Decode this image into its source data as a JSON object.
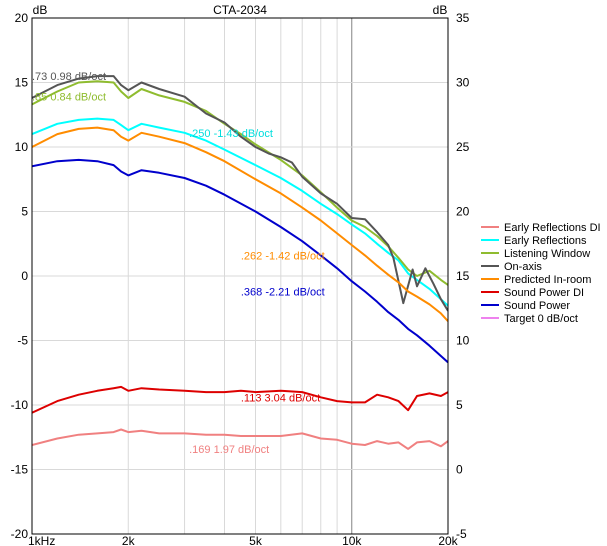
{
  "chart_data": {
    "type": "line",
    "title": "CTA-2034",
    "y_left_unit": "dB",
    "y_right_unit": "dB",
    "x_scale": "log",
    "xlim": [
      1000,
      20000
    ],
    "ylim_left": [
      -20,
      20
    ],
    "ylim_right": [
      -5,
      35
    ],
    "x_ticks": [
      {
        "value": 1000,
        "label": "1kHz"
      },
      {
        "value": 2000,
        "label": "2k"
      },
      {
        "value": 5000,
        "label": "5k"
      },
      {
        "value": 10000,
        "label": "10k"
      },
      {
        "value": 20000,
        "label": "20k"
      }
    ],
    "y_left_ticks": [
      {
        "value": 20,
        "label": "20"
      },
      {
        "value": 15,
        "label": "15"
      },
      {
        "value": 10,
        "label": "10"
      },
      {
        "value": 5,
        "label": "5"
      },
      {
        "value": 0,
        "label": "0"
      },
      {
        "value": -5,
        "label": "-5"
      },
      {
        "value": -10,
        "label": "-10"
      },
      {
        "value": -15,
        "label": "-15"
      },
      {
        "value": -20,
        "label": "-20"
      }
    ],
    "y_right_ticks": [
      {
        "value": 35,
        "label": "35"
      },
      {
        "value": 30,
        "label": "30"
      },
      {
        "value": 25,
        "label": "25"
      },
      {
        "value": 20,
        "label": "20"
      },
      {
        "value": 15,
        "label": "15"
      },
      {
        "value": 10,
        "label": "10"
      },
      {
        "value": 5,
        "label": "5"
      },
      {
        "value": 0,
        "label": "0"
      },
      {
        "value": -5,
        "label": "-5"
      }
    ],
    "grid": true,
    "legend_position": "right",
    "series": [
      {
        "name": "Early Reflections DI",
        "color": "#f08080",
        "axis": "right",
        "points": [
          [
            1000,
            1.9
          ],
          [
            1200,
            2.4
          ],
          [
            1400,
            2.7
          ],
          [
            1600,
            2.8
          ],
          [
            1800,
            2.9
          ],
          [
            1900,
            3.1
          ],
          [
            2000,
            2.9
          ],
          [
            2200,
            3.0
          ],
          [
            2500,
            2.8
          ],
          [
            3000,
            2.8
          ],
          [
            3500,
            2.7
          ],
          [
            4000,
            2.7
          ],
          [
            4500,
            2.6
          ],
          [
            5000,
            2.6
          ],
          [
            6000,
            2.6
          ],
          [
            7000,
            2.8
          ],
          [
            8000,
            2.4
          ],
          [
            9000,
            2.3
          ],
          [
            10000,
            2.0
          ],
          [
            11000,
            1.9
          ],
          [
            12000,
            2.2
          ],
          [
            13000,
            2.0
          ],
          [
            14000,
            2.1
          ],
          [
            15000,
            1.6
          ],
          [
            16000,
            2.1
          ],
          [
            17500,
            2.2
          ],
          [
            19000,
            1.8
          ],
          [
            20000,
            2.2
          ]
        ]
      },
      {
        "name": "Early Reflections",
        "color": "#00ffff",
        "axis": "left",
        "points": [
          [
            1000,
            11.0
          ],
          [
            1200,
            11.8
          ],
          [
            1400,
            12.1
          ],
          [
            1600,
            12.2
          ],
          [
            1800,
            12.1
          ],
          [
            1900,
            11.7
          ],
          [
            2000,
            11.3
          ],
          [
            2200,
            11.8
          ],
          [
            2500,
            11.5
          ],
          [
            3000,
            11.1
          ],
          [
            3500,
            10.5
          ],
          [
            4000,
            9.8
          ],
          [
            5000,
            8.6
          ],
          [
            6000,
            7.6
          ],
          [
            7000,
            6.6
          ],
          [
            8000,
            5.6
          ],
          [
            9000,
            4.8
          ],
          [
            10000,
            4.0
          ],
          [
            11000,
            3.3
          ],
          [
            12000,
            2.5
          ],
          [
            13000,
            1.8
          ],
          [
            14000,
            1.2
          ],
          [
            15000,
            0.2
          ],
          [
            16000,
            -0.3
          ],
          [
            17500,
            -1.0
          ],
          [
            19000,
            -1.8
          ],
          [
            20000,
            -2.3
          ]
        ]
      },
      {
        "name": "Listening Window",
        "color": "#8fbc2f",
        "axis": "left",
        "points": [
          [
            1000,
            13.3
          ],
          [
            1200,
            14.3
          ],
          [
            1400,
            15.0
          ],
          [
            1600,
            15.1
          ],
          [
            1800,
            15.0
          ],
          [
            1900,
            14.3
          ],
          [
            2000,
            13.8
          ],
          [
            2200,
            14.5
          ],
          [
            2500,
            14.0
          ],
          [
            3000,
            13.5
          ],
          [
            3500,
            12.8
          ],
          [
            4000,
            11.8
          ],
          [
            4500,
            11.0
          ],
          [
            5000,
            10.2
          ],
          [
            6000,
            9.0
          ],
          [
            7000,
            7.8
          ],
          [
            8000,
            6.5
          ],
          [
            9000,
            5.3
          ],
          [
            10000,
            4.3
          ],
          [
            11000,
            3.8
          ],
          [
            12000,
            3.1
          ],
          [
            13000,
            2.3
          ],
          [
            14000,
            1.4
          ],
          [
            15000,
            0.5
          ],
          [
            16000,
            0.0
          ],
          [
            17500,
            0.4
          ],
          [
            19000,
            -0.3
          ],
          [
            20000,
            -0.7
          ]
        ]
      },
      {
        "name": "On-axis",
        "color": "#555555",
        "axis": "left",
        "points": [
          [
            1000,
            13.8
          ],
          [
            1200,
            14.8
          ],
          [
            1400,
            15.3
          ],
          [
            1600,
            15.5
          ],
          [
            1800,
            15.5
          ],
          [
            1900,
            14.8
          ],
          [
            2000,
            14.4
          ],
          [
            2200,
            15.0
          ],
          [
            2500,
            14.5
          ],
          [
            3000,
            13.9
          ],
          [
            3500,
            12.6
          ],
          [
            4000,
            11.9
          ],
          [
            4500,
            10.8
          ],
          [
            5000,
            10.0
          ],
          [
            5500,
            9.5
          ],
          [
            6000,
            9.2
          ],
          [
            6500,
            8.8
          ],
          [
            7000,
            7.7
          ],
          [
            8000,
            6.4
          ],
          [
            9000,
            5.6
          ],
          [
            10000,
            4.5
          ],
          [
            11000,
            4.4
          ],
          [
            12000,
            3.4
          ],
          [
            13000,
            2.4
          ],
          [
            13500,
            1.4
          ],
          [
            14500,
            -2.1
          ],
          [
            15500,
            0.5
          ],
          [
            16000,
            -0.8
          ],
          [
            17000,
            0.6
          ],
          [
            18000,
            -0.6
          ],
          [
            19000,
            -1.8
          ],
          [
            20000,
            -2.7
          ]
        ]
      },
      {
        "name": "Predicted In-room",
        "color": "#ff8c00",
        "axis": "left",
        "points": [
          [
            1000,
            10.0
          ],
          [
            1200,
            11.0
          ],
          [
            1400,
            11.4
          ],
          [
            1600,
            11.5
          ],
          [
            1800,
            11.3
          ],
          [
            1900,
            10.8
          ],
          [
            2000,
            10.5
          ],
          [
            2200,
            11.1
          ],
          [
            2500,
            10.8
          ],
          [
            3000,
            10.3
          ],
          [
            3500,
            9.6
          ],
          [
            4000,
            8.9
          ],
          [
            5000,
            7.5
          ],
          [
            6000,
            6.4
          ],
          [
            7000,
            5.3
          ],
          [
            8000,
            4.3
          ],
          [
            9000,
            3.3
          ],
          [
            10000,
            2.4
          ],
          [
            11000,
            1.6
          ],
          [
            12000,
            0.8
          ],
          [
            13000,
            0.1
          ],
          [
            14000,
            -0.5
          ],
          [
            15000,
            -1.2
          ],
          [
            16000,
            -1.6
          ],
          [
            17500,
            -2.2
          ],
          [
            19000,
            -2.9
          ],
          [
            20000,
            -3.5
          ]
        ]
      },
      {
        "name": "Sound Power DI",
        "color": "#dd0000",
        "axis": "right",
        "points": [
          [
            1000,
            4.4
          ],
          [
            1200,
            5.3
          ],
          [
            1400,
            5.8
          ],
          [
            1600,
            6.1
          ],
          [
            1800,
            6.3
          ],
          [
            1900,
            6.4
          ],
          [
            2000,
            6.1
          ],
          [
            2200,
            6.3
          ],
          [
            2500,
            6.2
          ],
          [
            3000,
            6.1
          ],
          [
            3500,
            6.0
          ],
          [
            4000,
            6.0
          ],
          [
            4500,
            6.1
          ],
          [
            5000,
            6.0
          ],
          [
            6000,
            6.1
          ],
          [
            7000,
            6.0
          ],
          [
            8000,
            5.6
          ],
          [
            9000,
            5.3
          ],
          [
            10000,
            5.2
          ],
          [
            11000,
            5.2
          ],
          [
            12000,
            5.8
          ],
          [
            13000,
            5.6
          ],
          [
            14000,
            5.3
          ],
          [
            15000,
            4.6
          ],
          [
            16000,
            5.7
          ],
          [
            17500,
            5.9
          ],
          [
            19000,
            5.7
          ],
          [
            20000,
            6.0
          ]
        ]
      },
      {
        "name": "Sound Power",
        "color": "#0000cc",
        "axis": "left",
        "points": [
          [
            1000,
            8.5
          ],
          [
            1200,
            8.9
          ],
          [
            1400,
            9.0
          ],
          [
            1600,
            8.9
          ],
          [
            1800,
            8.6
          ],
          [
            1900,
            8.1
          ],
          [
            2000,
            7.8
          ],
          [
            2200,
            8.2
          ],
          [
            2500,
            8.0
          ],
          [
            3000,
            7.6
          ],
          [
            3500,
            7.0
          ],
          [
            4000,
            6.3
          ],
          [
            5000,
            5.0
          ],
          [
            6000,
            3.8
          ],
          [
            7000,
            2.7
          ],
          [
            8000,
            1.6
          ],
          [
            9000,
            0.6
          ],
          [
            10000,
            -0.4
          ],
          [
            11000,
            -1.2
          ],
          [
            12000,
            -2.0
          ],
          [
            13000,
            -2.8
          ],
          [
            14000,
            -3.4
          ],
          [
            15000,
            -4.1
          ],
          [
            16000,
            -4.6
          ],
          [
            17500,
            -5.4
          ],
          [
            19000,
            -6.2
          ],
          [
            20000,
            -6.7
          ]
        ]
      },
      {
        "name": "Target 0 dB/oct",
        "color": "#ee82ee",
        "axis": "left",
        "points": []
      }
    ],
    "annotations": [
      {
        "text": ".73  0.98 dB/oct",
        "color": "#555555",
        "x": 1000,
        "y": 15.5
      },
      {
        "text": ".85  0.84 dB/oct",
        "color": "#8fbc2f",
        "x": 1000,
        "y": 13.9
      },
      {
        "text": ".250  -1.43 dB/oct",
        "color": "#00dddd",
        "x": 3100,
        "y": 11.1
      },
      {
        "text": ".262  -1.42 dB/oct",
        "color": "#ff8c00",
        "x": 4500,
        "y": 1.6
      },
      {
        "text": ".368  -2.21 dB/oct",
        "color": "#0000cc",
        "x": 4500,
        "y": -1.2
      },
      {
        "text": ".113  3.04 dB/oct",
        "color": "#dd0000",
        "x": 4500,
        "y": -9.4
      },
      {
        "text": ".169  1.97 dB/oct",
        "color": "#f08080",
        "x": 3100,
        "y": -13.4
      }
    ]
  }
}
